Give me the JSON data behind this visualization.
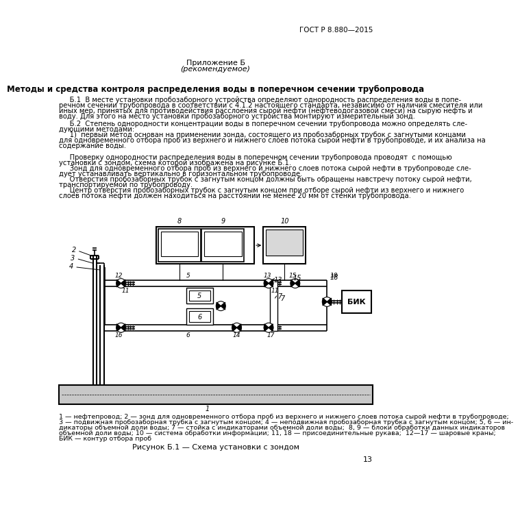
{
  "page_width": 6.61,
  "page_height": 9.36,
  "background_color": "#ffffff",
  "header_right": "ГОСТ Р 8.880—2015",
  "header_center_line1": "Приложение Б",
  "header_center_line2": "(рекомендуемое)",
  "section_title": "Методы и средства контроля распределения воды в поперечном сечении трубопровода",
  "b1_line1": "     Б.1  В месте установки пробозаборного устройства определяют однородность распределения воды в попе-",
  "b1_line2": "речном сечении трубопровода в соответствии с 4.1.2 настоящего стандарта, независимо от наличия смесителя или",
  "b1_line3": "иных мер, принятых для противодействия расслоения сырой нефти (нефтеводогазовой смеси) на сырую нефть и",
  "b1_line4": "воду. Для этого на место установки пробозаборного устройства монтируют измерительный зонд.",
  "b2_line1": "     Б.2  Степень однородности концентрации воды в поперечном сечении трубопровода можно определять сле-",
  "b2_line2": "дующими методами:",
  "i1_line1": "     1)  первый метод основан на применении зонда, состоящего из пробозаборных трубок с загнутыми концами",
  "i1_line2": "для одновременного отбора проб из верхнего и нижнего слоев потока сырой нефти в трубопроводе, и их анализа на",
  "i1_line3": "содержание воды.",
  "c1_line1": "     Проверку однородности распределения воды в поперечном сечении трубопровода проводят  с помощью",
  "c1_line2": "установки с зондом, схема которой изображена на рисунке Б.1.",
  "pv_line1": "     Зонд для одновременного отбора проб из верхнего и нижнего слоев потока сырой нефти в трубопроводе сле-",
  "pv_line2": "дует устанавливать вертикально в горизонтальном трубопроводе.",
  "pd_line1": "     Отверстия пробозаборных трубок с загнутым концом должны быть обращены навстречу потоку сырой нефти,",
  "pd_line2": "транспортируемой по трубопроводу.",
  "pdist_line1": "     Центр отверстия пробозаборных трубок с загнутым концом при отборе сырой нефти из верхнего и нижнего",
  "pdist_line2": "слоев потока нефти должен находиться на расстоянии не менее 20 мм от стенки трубопровода.",
  "legend_line1": "1 — нефтепровод; 2 — зонд для одновременного отбора проб из верхнего и нижнего слоев потока сырой нефти в трубопроводе;",
  "legend_line2": "3 — подвижная пробозаборная трубка с загнутым концом; 4 — неподвижная пробозаборная трубка с загнутым концом; 5, 6 — ин-",
  "legend_line3": "дикаторы объемной доли воды; 7 — стойка с индикаторами объемной доли воды;  8, 9 — блоки обработки данных индикаторов",
  "legend_line4": "объемной доли воды; 10 — система обработки информации; 11, 18 — присоединительные рукава;  12—17 — шаровые краны;",
  "legend_line5": "БИК — контур отбора проб",
  "figure_title": "Рисунок Б.1 — Схема установки с зондом",
  "page_number": "13"
}
